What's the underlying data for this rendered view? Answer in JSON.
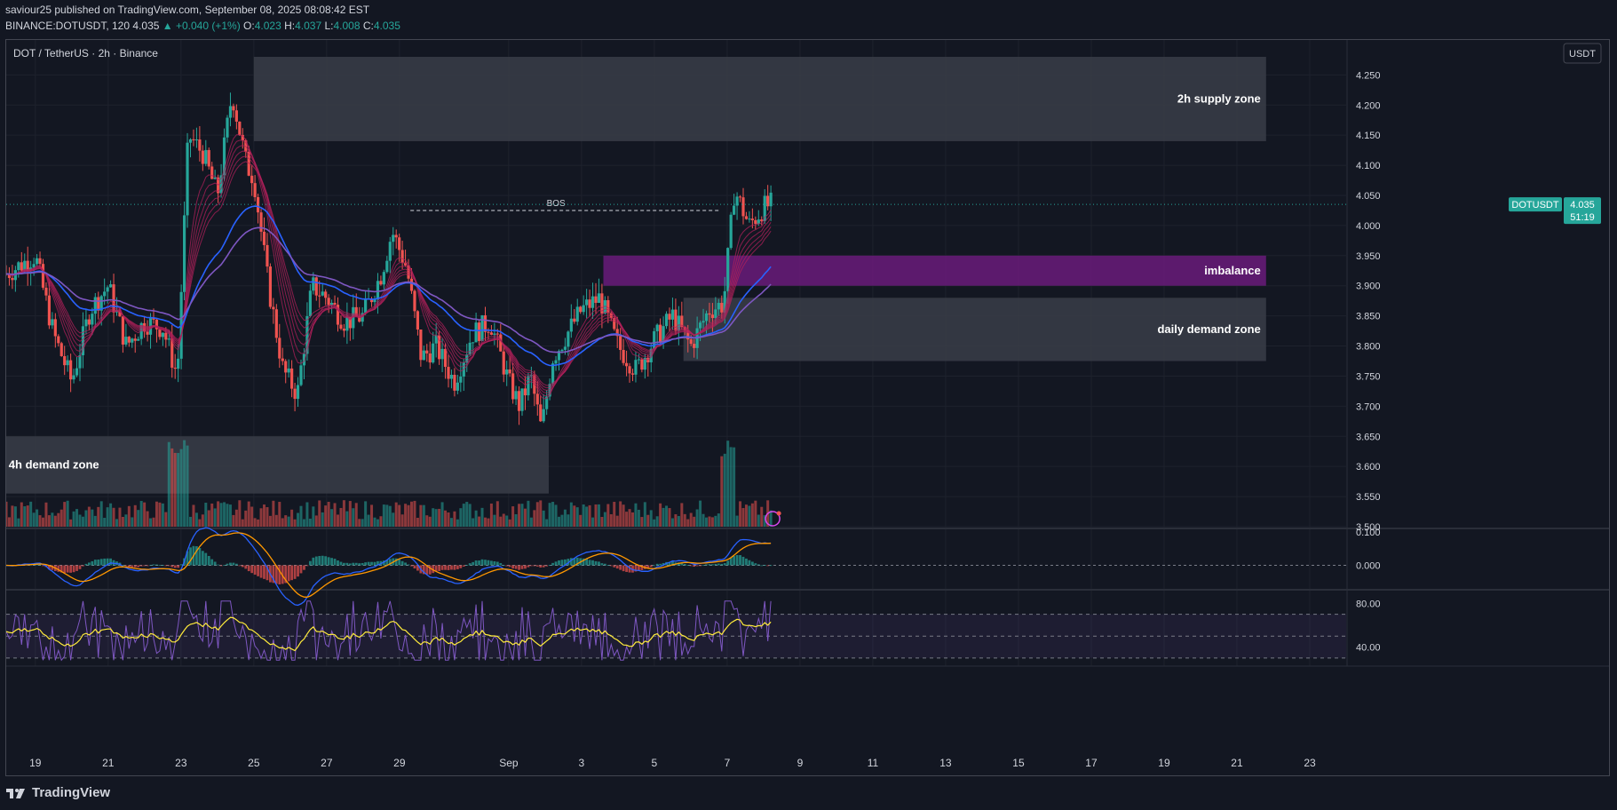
{
  "header": {
    "publisher": "saviour25 published on TradingView.com, September 08, 2025 08:08:42 EST",
    "symbol_line": "BINANCE:DOTUSDT, 120",
    "last": "4.035",
    "change": "▲ +0.040 (+1%)",
    "o_label": "O:",
    "o": "4.023",
    "h_label": "H:",
    "h": "4.037",
    "l_label": "L:",
    "l": "4.008",
    "c_label": "C:",
    "c": "4.035"
  },
  "pane_title": "DOT / TetherUS · 2h · Binance",
  "currency_button": "USDT",
  "price_tag": {
    "symbol": "DOTUSDT",
    "price": "4.035",
    "countdown": "51:19"
  },
  "zones": [
    {
      "label": "2h supply zone",
      "low": 4.14,
      "high": 4.28,
      "x_from": "Aug 25",
      "x_to": "Sep 21.8",
      "color": "#3a3d48"
    },
    {
      "label": "imbalance",
      "low": 3.9,
      "high": 3.95,
      "x_from": "Sep 3.6",
      "x_to": "Sep 21.8",
      "color": "#6a1b7a"
    },
    {
      "label": "daily demand zone",
      "low": 3.775,
      "high": 3.88,
      "x_from": "Sep 5.8",
      "x_to": "Sep 21.8",
      "color": "#3a3d48"
    },
    {
      "label": "4h demand zone",
      "low": 3.555,
      "high": 3.65,
      "x_from": "Aug 18",
      "x_to": "Sep 2.1",
      "color": "#3a3d48"
    }
  ],
  "annotation": {
    "label": "BOS",
    "price": 4.025
  },
  "footer": {
    "brand": "TradingView",
    "logo_icon": "tradingview-logo-icon"
  },
  "chart_data": {
    "type": "candlestick",
    "title": "DOT / TetherUS · 2h · Binance",
    "price_axis": {
      "ticks": [
        "4.250",
        "4.200",
        "4.150",
        "4.100",
        "4.050",
        "4.000",
        "3.950",
        "3.900",
        "3.850",
        "3.800",
        "3.750",
        "3.700",
        "3.650",
        "3.600",
        "3.550",
        "3.500"
      ],
      "range": [
        3.5,
        4.28
      ]
    },
    "time_axis": {
      "ticks": [
        "19",
        "21",
        "23",
        "25",
        "27",
        "29",
        "Sep",
        "3",
        "5",
        "7",
        "9",
        "11",
        "13",
        "15",
        "17",
        "19",
        "21",
        "23"
      ],
      "tick_days": [
        19,
        21,
        23,
        25,
        27,
        29,
        32,
        34,
        36,
        38,
        40,
        42,
        44,
        46,
        48,
        50,
        52,
        54
      ],
      "range_days": [
        18.2,
        55.0
      ]
    },
    "price_path": {
      "days": [
        18.2,
        19.0,
        19.5,
        20.0,
        20.5,
        21.0,
        21.5,
        22.0,
        22.5,
        22.9,
        23.2,
        23.6,
        24.0,
        24.4,
        24.8,
        25.0,
        25.4,
        25.8,
        26.2,
        26.6,
        27.0,
        27.5,
        28.0,
        28.5,
        28.8,
        29.2,
        29.6,
        30.0,
        30.5,
        31.0,
        31.5,
        32.0,
        32.3,
        32.6,
        32.9,
        33.2,
        33.6,
        34.0,
        34.5,
        35.0,
        35.5,
        36.0,
        36.5,
        37.0,
        37.5,
        37.9,
        38.2,
        38.6,
        39.0,
        39.2
      ],
      "closes": [
        3.92,
        3.95,
        3.82,
        3.74,
        3.86,
        3.9,
        3.8,
        3.84,
        3.83,
        3.75,
        4.15,
        4.12,
        4.05,
        4.22,
        4.1,
        4.08,
        3.9,
        3.76,
        3.72,
        3.9,
        3.88,
        3.84,
        3.85,
        3.92,
        3.99,
        3.93,
        3.78,
        3.8,
        3.74,
        3.82,
        3.84,
        3.74,
        3.7,
        3.75,
        3.66,
        3.78,
        3.82,
        3.86,
        3.88,
        3.8,
        3.76,
        3.81,
        3.85,
        3.8,
        3.86,
        3.87,
        4.06,
        4.0,
        4.03,
        4.035
      ]
    },
    "volume_pane": {
      "range": [
        0,
        1
      ]
    },
    "macd_pane": {
      "ticks": [
        "0.100",
        "0.000"
      ],
      "range": [
        -0.06,
        0.1
      ]
    },
    "rsi_pane": {
      "ticks": [
        "80.00",
        "40.00"
      ],
      "range": [
        25,
        90
      ],
      "upper_band": 70,
      "lower_band": 30,
      "mid": 50
    },
    "last_price": 4.035,
    "colors": {
      "up": "#26a69a",
      "down": "#ef5350",
      "ribbon_down": "#b2205b",
      "ribbon_up": "#4caf50",
      "ma_blue": "#2962ff",
      "ma_purple": "#7e57c2",
      "macd": "#2962ff",
      "signal": "#ff9800",
      "rsi": "#7e57c2",
      "rsi_ma": "#ffeb3b"
    }
  }
}
